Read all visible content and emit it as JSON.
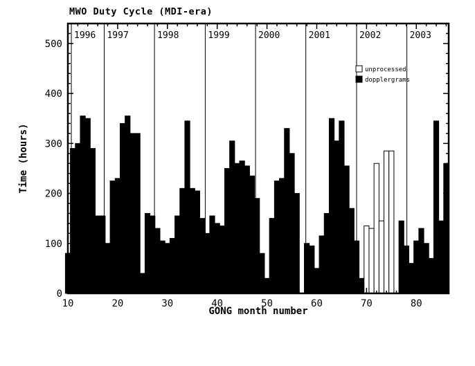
{
  "page": {
    "background": "#ffffff",
    "foreground": "#000000"
  },
  "chart_data": {
    "type": "bar",
    "title": "MWO Duty Cycle (MDI-era)",
    "xlabel": "GONG month number",
    "ylabel": "Time (hours)",
    "xlim": [
      10,
      86.5
    ],
    "ylim": [
      0,
      540
    ],
    "xticks": [
      10,
      20,
      30,
      40,
      50,
      60,
      70,
      80
    ],
    "yticks": [
      0,
      100,
      200,
      300,
      400,
      500
    ],
    "x_minor_step": 2,
    "y_minor_step": 20,
    "grid": false,
    "legend_position": "upper-right-inside",
    "year_lines": [
      {
        "label": "1996",
        "month": 10.7
      },
      {
        "label": "1997",
        "month": 17.3
      },
      {
        "label": "1998",
        "month": 27.4
      },
      {
        "label": "1999",
        "month": 37.6
      },
      {
        "label": "2000",
        "month": 47.7
      },
      {
        "label": "2001",
        "month": 57.8
      },
      {
        "label": "2002",
        "month": 68.0
      },
      {
        "label": "2003",
        "month": 78.1
      }
    ],
    "legend": [
      {
        "label": "unprocessed",
        "fill": "#ffffff",
        "stroke": "#000000"
      },
      {
        "label": "dopplergrams",
        "fill": "#000000",
        "stroke": "#000000"
      }
    ],
    "bars": [
      {
        "month": 10,
        "hours": 80,
        "series": "dopplergrams"
      },
      {
        "month": 11,
        "hours": 290,
        "series": "dopplergrams"
      },
      {
        "month": 12,
        "hours": 300,
        "series": "dopplergrams"
      },
      {
        "month": 13,
        "hours": 355,
        "series": "dopplergrams"
      },
      {
        "month": 14,
        "hours": 350,
        "series": "dopplergrams"
      },
      {
        "month": 15,
        "hours": 290,
        "series": "dopplergrams"
      },
      {
        "month": 16,
        "hours": 155,
        "series": "dopplergrams"
      },
      {
        "month": 17,
        "hours": 155,
        "series": "dopplergrams"
      },
      {
        "month": 18,
        "hours": 100,
        "series": "dopplergrams"
      },
      {
        "month": 19,
        "hours": 225,
        "series": "dopplergrams"
      },
      {
        "month": 20,
        "hours": 230,
        "series": "dopplergrams"
      },
      {
        "month": 21,
        "hours": 340,
        "series": "dopplergrams"
      },
      {
        "month": 22,
        "hours": 355,
        "series": "dopplergrams"
      },
      {
        "month": 23,
        "hours": 320,
        "series": "dopplergrams"
      },
      {
        "month": 24,
        "hours": 320,
        "series": "dopplergrams"
      },
      {
        "month": 25,
        "hours": 40,
        "series": "dopplergrams"
      },
      {
        "month": 26,
        "hours": 160,
        "series": "dopplergrams"
      },
      {
        "month": 27,
        "hours": 155,
        "series": "dopplergrams"
      },
      {
        "month": 28,
        "hours": 130,
        "series": "dopplergrams"
      },
      {
        "month": 29,
        "hours": 105,
        "series": "dopplergrams"
      },
      {
        "month": 30,
        "hours": 100,
        "series": "dopplergrams"
      },
      {
        "month": 31,
        "hours": 110,
        "series": "dopplergrams"
      },
      {
        "month": 32,
        "hours": 155,
        "series": "dopplergrams"
      },
      {
        "month": 33,
        "hours": 210,
        "series": "dopplergrams"
      },
      {
        "month": 34,
        "hours": 345,
        "series": "dopplergrams"
      },
      {
        "month": 35,
        "hours": 210,
        "series": "dopplergrams"
      },
      {
        "month": 36,
        "hours": 205,
        "series": "dopplergrams"
      },
      {
        "month": 37,
        "hours": 150,
        "series": "dopplergrams"
      },
      {
        "month": 38,
        "hours": 120,
        "series": "dopplergrams"
      },
      {
        "month": 39,
        "hours": 155,
        "series": "dopplergrams"
      },
      {
        "month": 40,
        "hours": 140,
        "series": "dopplergrams"
      },
      {
        "month": 41,
        "hours": 135,
        "series": "dopplergrams"
      },
      {
        "month": 42,
        "hours": 250,
        "series": "dopplergrams"
      },
      {
        "month": 43,
        "hours": 305,
        "series": "dopplergrams"
      },
      {
        "month": 44,
        "hours": 260,
        "series": "dopplergrams"
      },
      {
        "month": 45,
        "hours": 265,
        "series": "dopplergrams"
      },
      {
        "month": 46,
        "hours": 255,
        "series": "dopplergrams"
      },
      {
        "month": 47,
        "hours": 235,
        "series": "dopplergrams"
      },
      {
        "month": 48,
        "hours": 190,
        "series": "dopplergrams"
      },
      {
        "month": 49,
        "hours": 80,
        "series": "dopplergrams"
      },
      {
        "month": 50,
        "hours": 30,
        "series": "dopplergrams"
      },
      {
        "month": 51,
        "hours": 150,
        "series": "dopplergrams"
      },
      {
        "month": 52,
        "hours": 225,
        "series": "dopplergrams"
      },
      {
        "month": 53,
        "hours": 230,
        "series": "dopplergrams"
      },
      {
        "month": 54,
        "hours": 330,
        "series": "dopplergrams"
      },
      {
        "month": 55,
        "hours": 280,
        "series": "dopplergrams"
      },
      {
        "month": 56,
        "hours": 200,
        "series": "dopplergrams"
      },
      {
        "month": 57,
        "hours": 0,
        "series": "dopplergrams"
      },
      {
        "month": 58,
        "hours": 100,
        "series": "dopplergrams"
      },
      {
        "month": 59,
        "hours": 95,
        "series": "dopplergrams"
      },
      {
        "month": 60,
        "hours": 50,
        "series": "dopplergrams"
      },
      {
        "month": 61,
        "hours": 115,
        "series": "dopplergrams"
      },
      {
        "month": 62,
        "hours": 160,
        "series": "dopplergrams"
      },
      {
        "month": 63,
        "hours": 350,
        "series": "dopplergrams"
      },
      {
        "month": 64,
        "hours": 305,
        "series": "dopplergrams"
      },
      {
        "month": 65,
        "hours": 345,
        "series": "dopplergrams"
      },
      {
        "month": 66,
        "hours": 255,
        "series": "dopplergrams"
      },
      {
        "month": 67,
        "hours": 170,
        "series": "dopplergrams"
      },
      {
        "month": 68,
        "hours": 105,
        "series": "dopplergrams"
      },
      {
        "month": 69,
        "hours": 30,
        "series": "dopplergrams"
      },
      {
        "month": 70,
        "hours": 135,
        "series": "unprocessed"
      },
      {
        "month": 71,
        "hours": 130,
        "series": "unprocessed"
      },
      {
        "month": 72,
        "hours": 260,
        "series": "unprocessed"
      },
      {
        "month": 73,
        "hours": 145,
        "series": "unprocessed"
      },
      {
        "month": 74,
        "hours": 285,
        "series": "unprocessed"
      },
      {
        "month": 75,
        "hours": 285,
        "series": "unprocessed"
      },
      {
        "month": 76,
        "hours": 0,
        "series": "dopplergrams"
      },
      {
        "month": 77,
        "hours": 145,
        "series": "dopplergrams"
      },
      {
        "month": 78,
        "hours": 95,
        "series": "dopplergrams"
      },
      {
        "month": 79,
        "hours": 60,
        "series": "dopplergrams"
      },
      {
        "month": 80,
        "hours": 105,
        "series": "dopplergrams"
      },
      {
        "month": 81,
        "hours": 130,
        "series": "dopplergrams"
      },
      {
        "month": 82,
        "hours": 100,
        "series": "dopplergrams"
      },
      {
        "month": 83,
        "hours": 70,
        "series": "dopplergrams"
      },
      {
        "month": 84,
        "hours": 345,
        "series": "dopplergrams"
      },
      {
        "month": 85,
        "hours": 145,
        "series": "dopplergrams"
      },
      {
        "month": 86,
        "hours": 260,
        "series": "dopplergrams"
      }
    ]
  }
}
